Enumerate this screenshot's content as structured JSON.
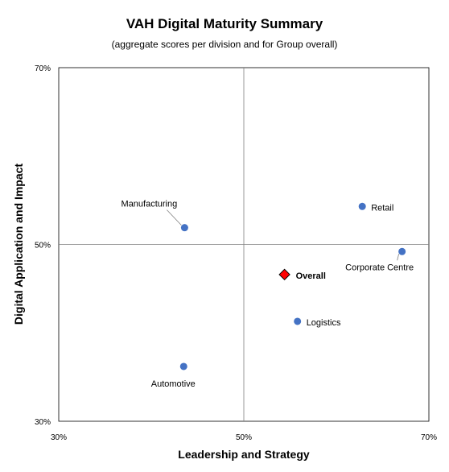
{
  "chart_data": {
    "type": "scatter",
    "title": "VAH Digital Maturity Summary",
    "subtitle": "(aggregate scores per division and for Group overall)",
    "xlabel": "Leadership and Strategy",
    "ylabel": "Digital Application and Impact",
    "xlim": [
      30,
      70
    ],
    "ylim": [
      30,
      70
    ],
    "x_ticks": [
      "30%",
      "50%",
      "70%"
    ],
    "y_ticks": [
      "30%",
      "50%",
      "70%"
    ],
    "grid": false,
    "quadrant_lines": {
      "x": 50,
      "y": 50
    },
    "points": [
      {
        "label": "Retail",
        "x": 62.8,
        "y": 54.3,
        "marker": "circle",
        "color": "#4472C4",
        "bold": false
      },
      {
        "label": "Manufacturing",
        "x": 43.6,
        "y": 51.9,
        "marker": "circle",
        "color": "#4472C4",
        "bold": false
      },
      {
        "label": "Corporate Centre",
        "x": 67.1,
        "y": 49.2,
        "marker": "circle",
        "color": "#4472C4",
        "bold": false
      },
      {
        "label": "Overall",
        "x": 54.4,
        "y": 46.6,
        "marker": "diamond",
        "color": "#FF0000",
        "bold": true
      },
      {
        "label": "Logistics",
        "x": 55.8,
        "y": 41.3,
        "marker": "circle",
        "color": "#4472C4",
        "bold": false
      },
      {
        "label": "Automotive",
        "x": 43.5,
        "y": 36.2,
        "marker": "circle",
        "color": "#4472C4",
        "bold": false
      }
    ]
  }
}
